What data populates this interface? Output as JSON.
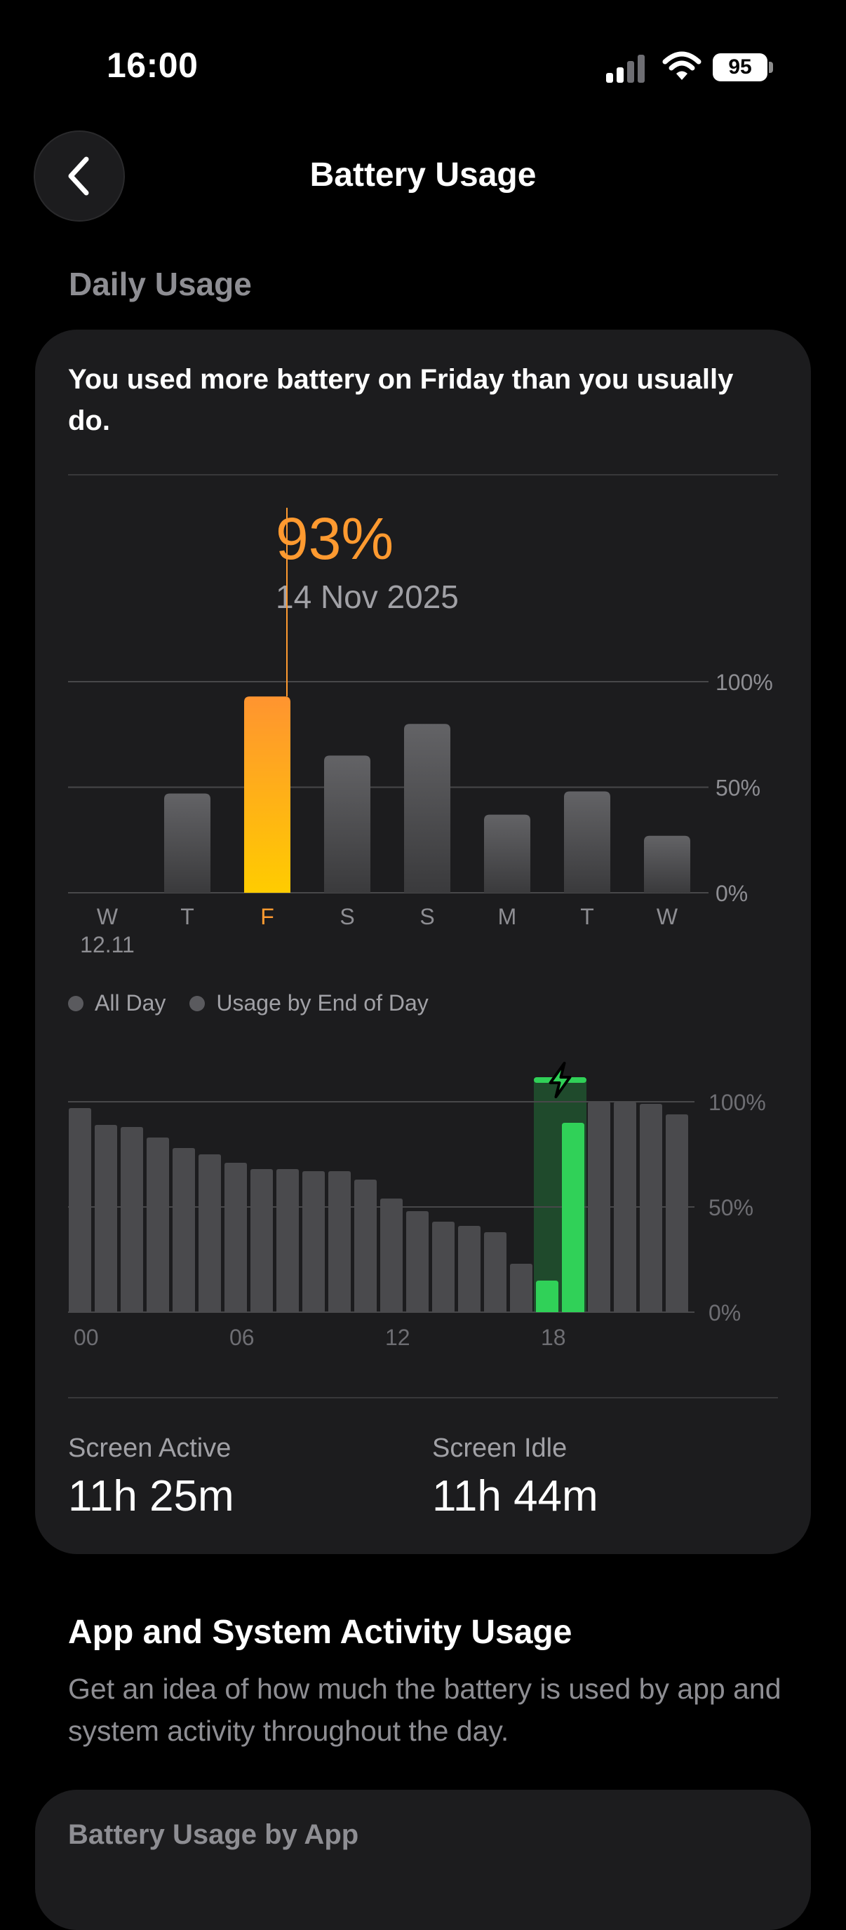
{
  "status_bar": {
    "time": "16:00",
    "battery": "95"
  },
  "nav": {
    "title": "Battery Usage"
  },
  "daily_usage": {
    "section_title": "Daily Usage",
    "insight": "You used more battery on Friday than you usually do.",
    "callout": {
      "value": "93%",
      "date": "14 Nov 2025"
    }
  },
  "colors": {
    "accent_orange": "#ff9a30",
    "charging_green": "#30d158",
    "bar_gray": "#5a5a5e"
  },
  "chart_data": [
    {
      "type": "bar",
      "categories": [
        "W",
        "T",
        "F",
        "S",
        "S",
        "M",
        "T",
        "W"
      ],
      "sublabels": [
        "12.11",
        "",
        "",
        "",
        "",
        "",
        "",
        ""
      ],
      "values": [
        0,
        47,
        93,
        65,
        80,
        37,
        48,
        27
      ],
      "highlight_index": 2,
      "ylim": [
        0,
        100
      ],
      "ytick_labels": [
        "100%",
        "50%",
        "0%"
      ],
      "ytick_values": [
        100,
        50,
        0
      ]
    },
    {
      "type": "bar",
      "xtick_labels": [
        "00",
        "06",
        "12",
        "18"
      ],
      "values": [
        97,
        89,
        88,
        83,
        78,
        75,
        71,
        68,
        68,
        67,
        67,
        63,
        54,
        48,
        43,
        41,
        38,
        23,
        0,
        0,
        100,
        100,
        99,
        94
      ],
      "charging": [
        {
          "hour": 18,
          "value": 15
        },
        {
          "hour": 19,
          "value": 90
        }
      ],
      "charging_band_hours": [
        18,
        19
      ],
      "ylim": [
        0,
        100
      ],
      "ytick_labels": [
        "100%",
        "50%",
        "0%"
      ],
      "ytick_values": [
        100,
        50,
        0
      ]
    }
  ],
  "legend": {
    "all_day": "All Day",
    "end_of_day": "Usage by End of Day"
  },
  "stats": {
    "screen_active_label": "Screen Active",
    "screen_active_value": "11h 25m",
    "screen_idle_label": "Screen Idle",
    "screen_idle_value": "11h 44m"
  },
  "app_section": {
    "title": "App and System Activity Usage",
    "description": "Get an idea of how much the battery is used by app and system activity throughout the day.",
    "next_card_title": "Battery Usage by App"
  }
}
